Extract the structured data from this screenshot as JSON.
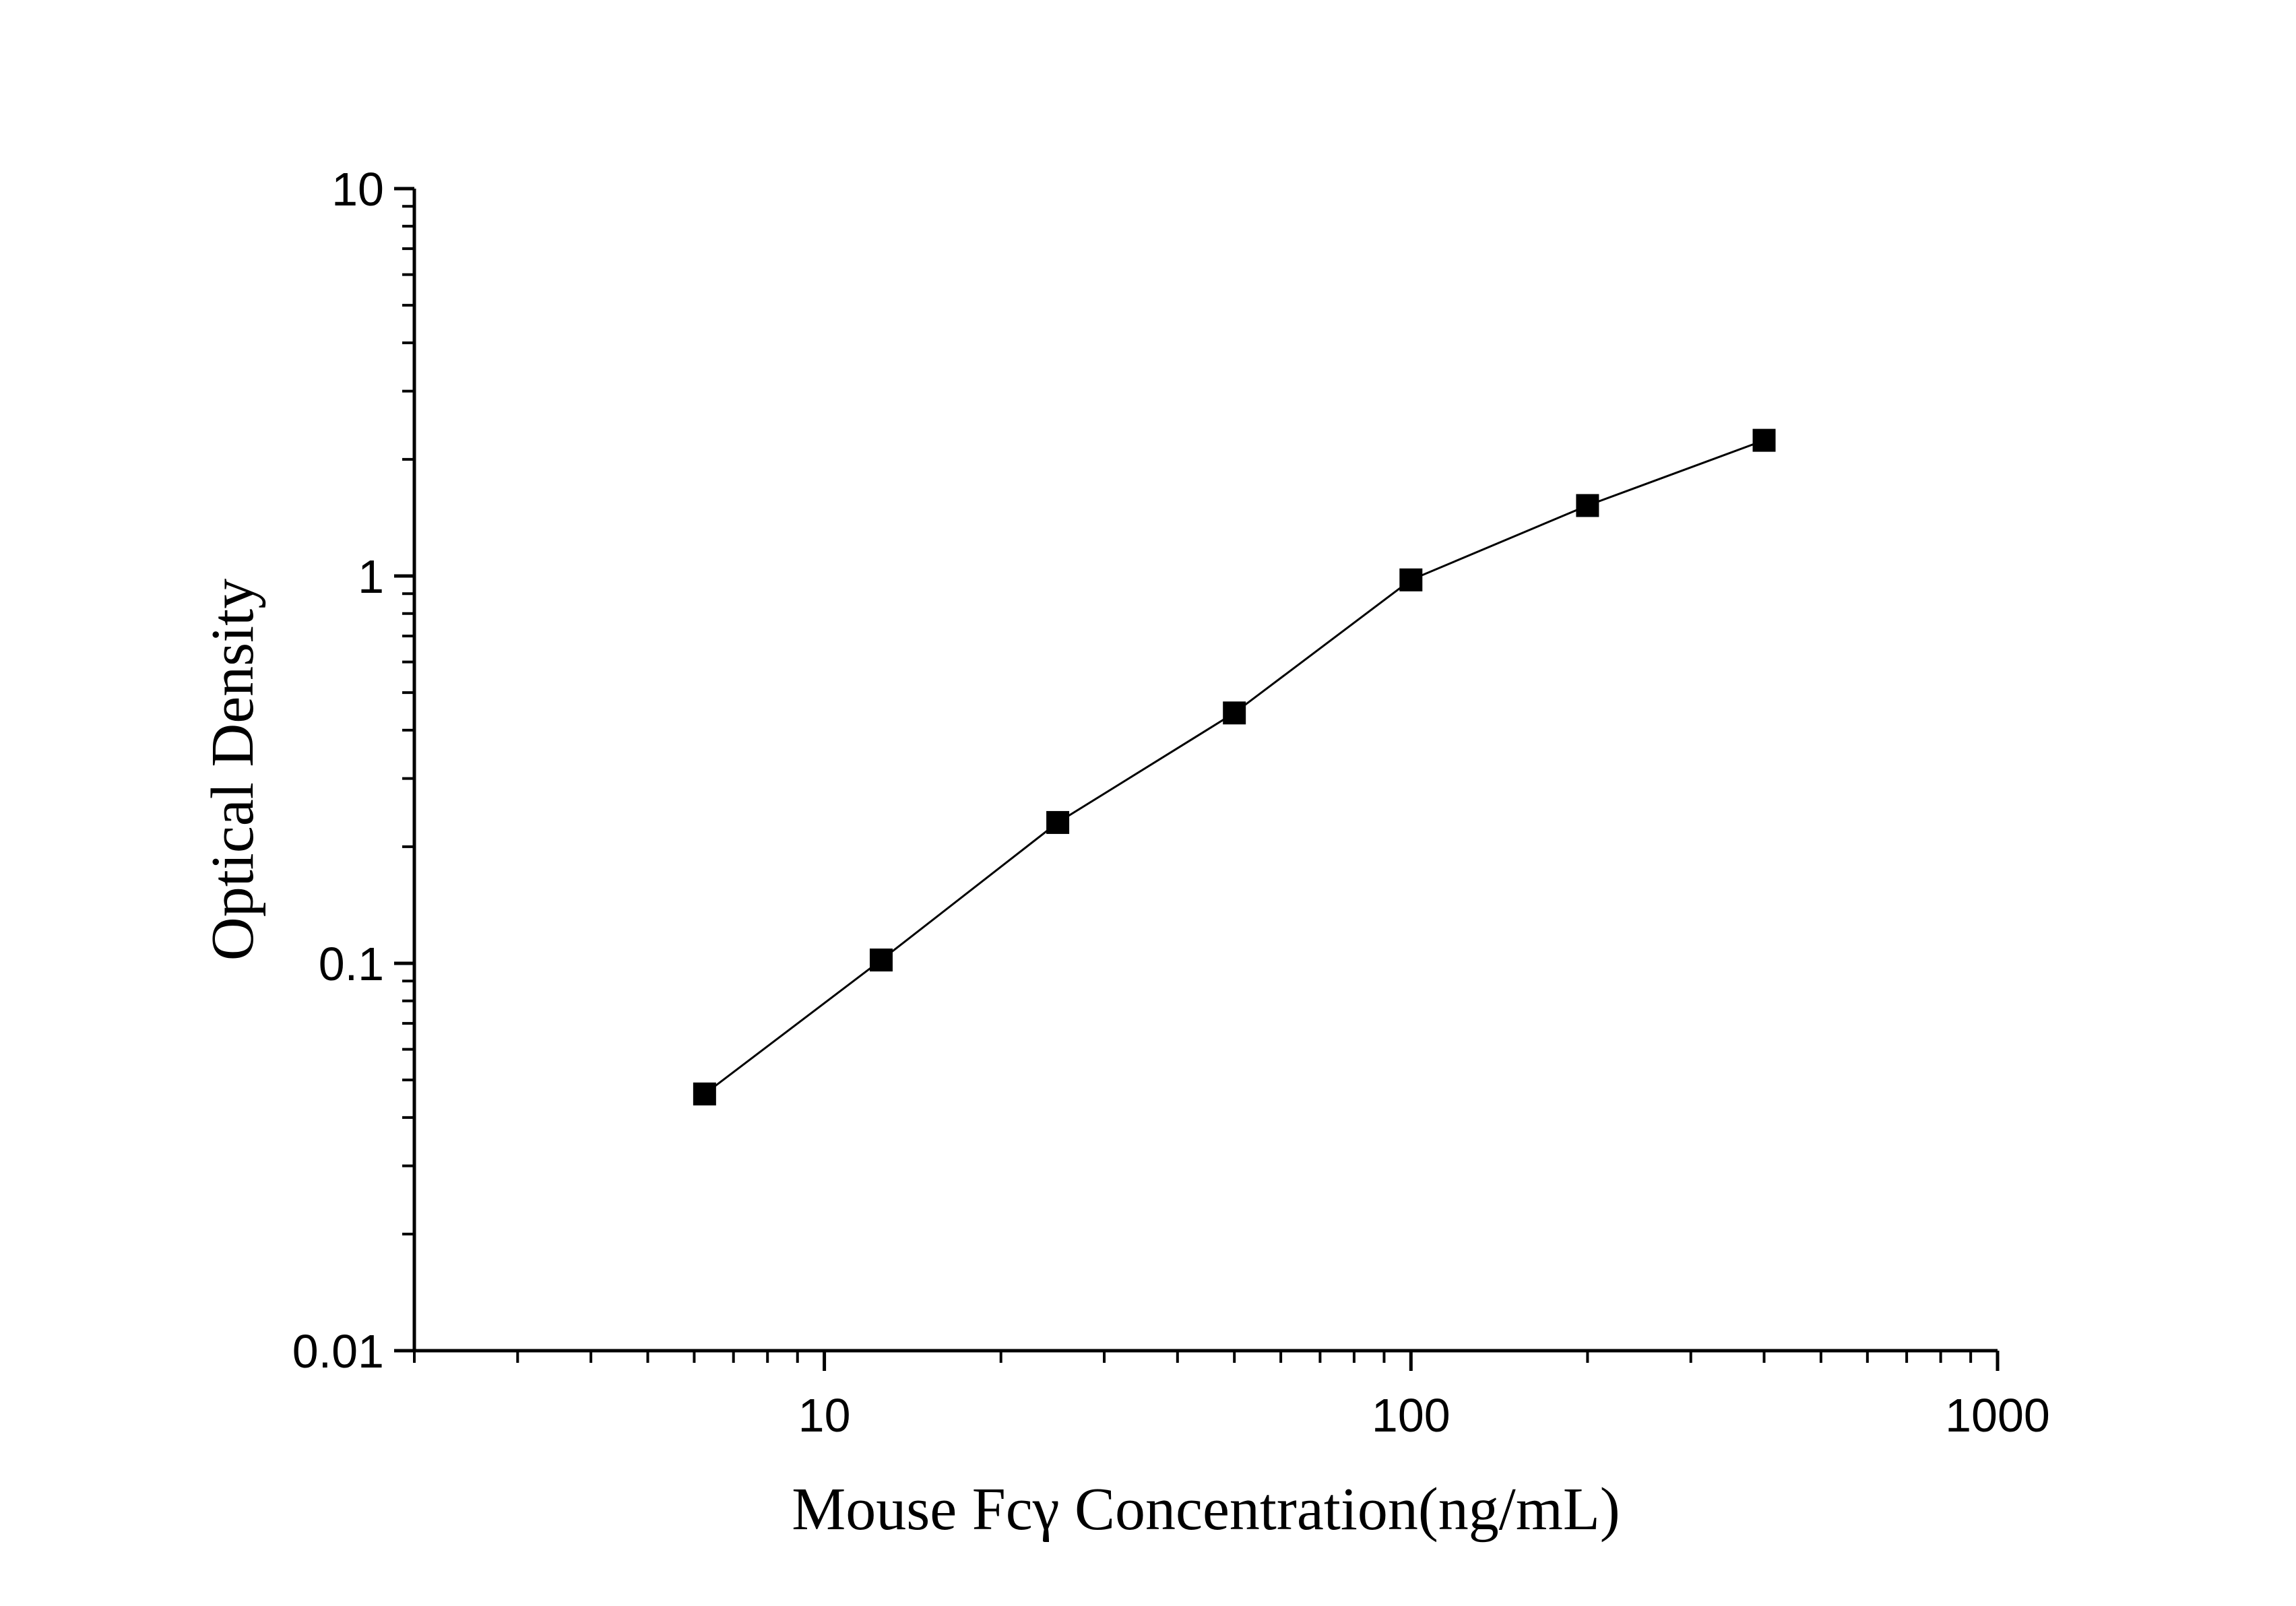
{
  "chart_data": {
    "type": "scatter",
    "title": "",
    "xlabel": "Mouse Fcγ Concentration(ng/mL)",
    "ylabel": "Optical Density",
    "x_scale": "log",
    "y_scale": "log",
    "xlim": [
      2,
      1000
    ],
    "ylim": [
      0.01,
      10
    ],
    "x_tick_labels": [
      "10",
      "100",
      "1000"
    ],
    "y_tick_labels": [
      "0.01",
      "0.1",
      "1",
      "10"
    ],
    "grid": false,
    "legend": "none",
    "series": [
      {
        "marker": "square",
        "connected": true,
        "color": "#000000",
        "x": [
          6.25,
          12.5,
          25,
          50,
          100,
          200,
          400
        ],
        "y": [
          0.046,
          0.102,
          0.231,
          0.443,
          0.977,
          1.52,
          2.24
        ]
      }
    ]
  }
}
